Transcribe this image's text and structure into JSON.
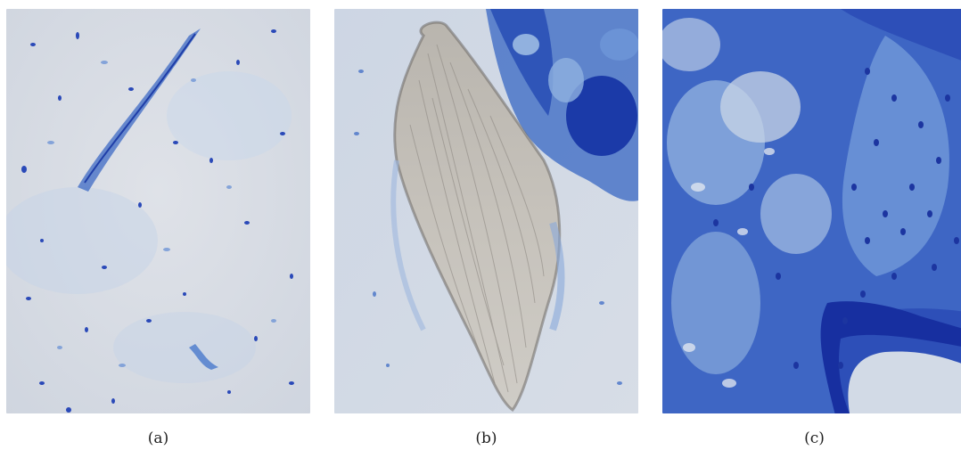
{
  "panels": [
    {
      "caption": "(a)"
    },
    {
      "caption": "(b)"
    },
    {
      "caption": "(c)"
    }
  ],
  "colors": {
    "background_a": "#d9dde4",
    "stain_dark": "#1a36a8",
    "stain_mid": "#3f66c8",
    "stain_light": "#8fb4e0",
    "fiber_gray": "#c4c0b8"
  }
}
